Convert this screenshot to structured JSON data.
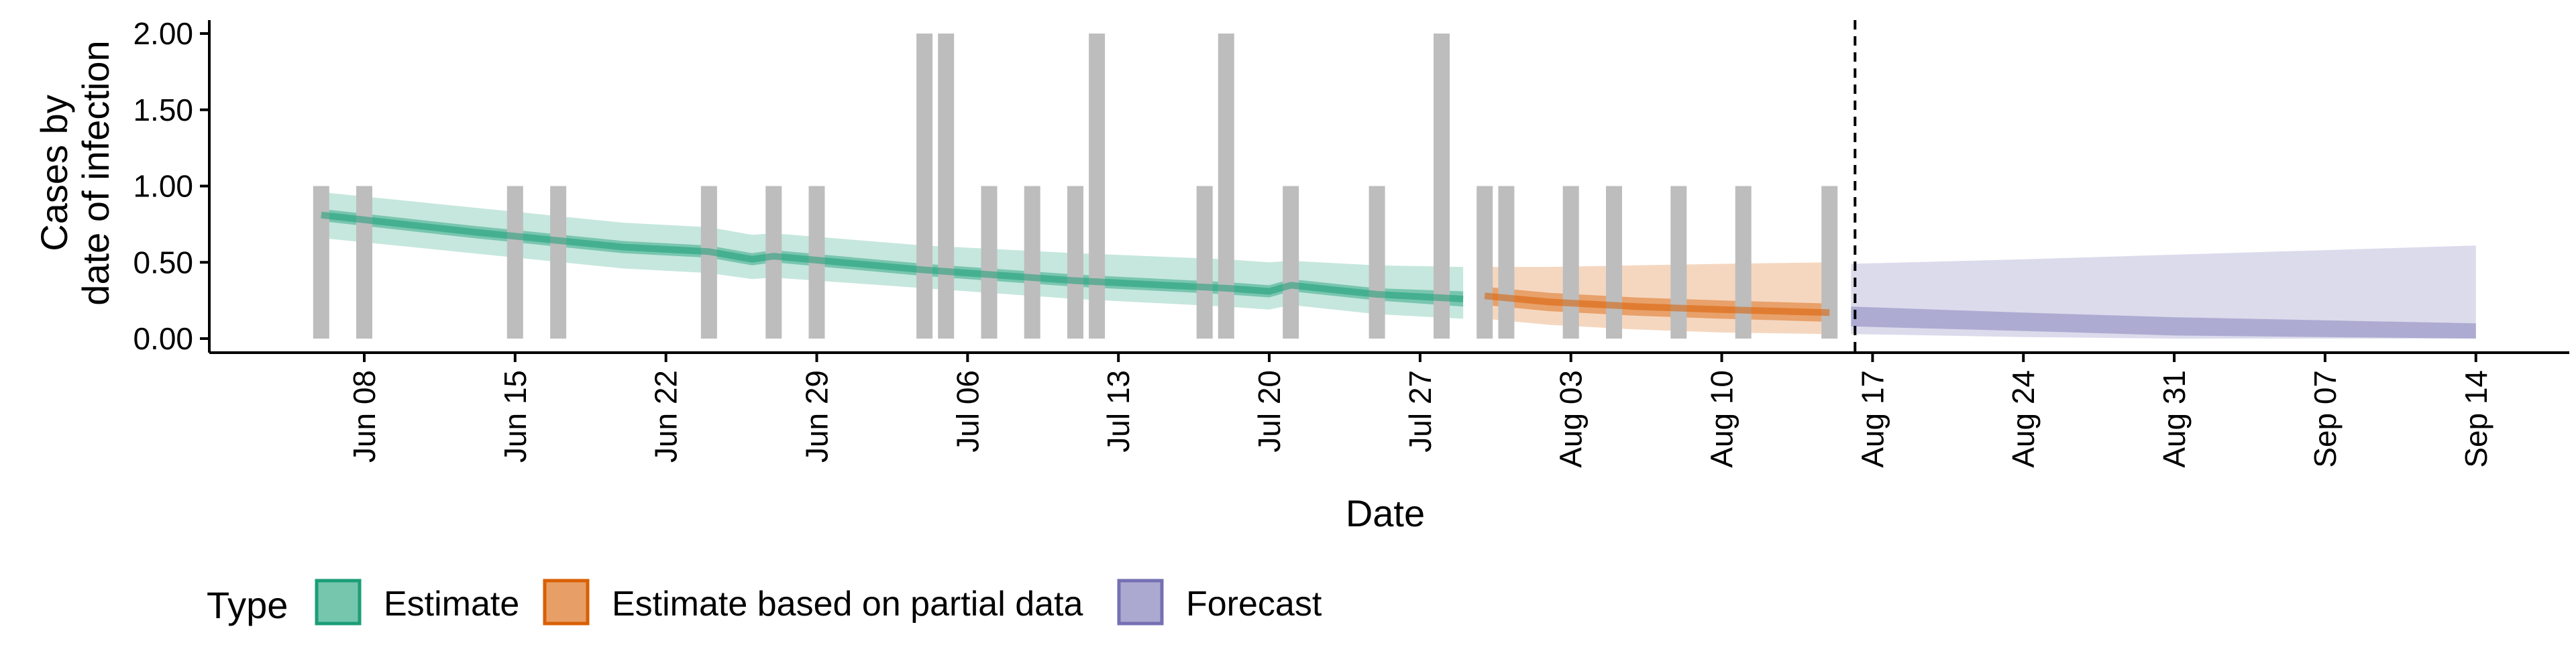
{
  "chart_data": {
    "type": "area",
    "xlabel": "Date",
    "ylabel_lines": [
      "Cases by",
      "date of infection"
    ],
    "ylim": [
      0,
      2.1
    ],
    "yticks": [
      0,
      0.5,
      1.0,
      1.5,
      2.0
    ],
    "ytick_labels": [
      "0.00",
      "0.50",
      "1.00",
      "1.50",
      "2.00"
    ],
    "xlim": [
      "2020-05-30",
      "2020-09-19"
    ],
    "xtick_dates": [
      "2020-06-08",
      "2020-06-15",
      "2020-06-22",
      "2020-06-29",
      "2020-07-06",
      "2020-07-13",
      "2020-07-20",
      "2020-07-27",
      "2020-08-03",
      "2020-08-10",
      "2020-08-17",
      "2020-08-24",
      "2020-08-31",
      "2020-09-07",
      "2020-09-14"
    ],
    "xtick_labels": [
      "Jun 08",
      "Jun 15",
      "Jun 22",
      "Jun 29",
      "Jul 06",
      "Jul 13",
      "Jul 20",
      "Jul 27",
      "Aug 03",
      "Aug 10",
      "Aug 17",
      "Aug 24",
      "Aug 31",
      "Sep 07",
      "Sep 14"
    ],
    "forecast_date": "2020-08-16",
    "reported_cases": {
      "color": "#bdbdbd",
      "dates": [
        "2020-06-06",
        "2020-06-08",
        "2020-06-15",
        "2020-06-17",
        "2020-06-24",
        "2020-06-27",
        "2020-06-29",
        "2020-07-04",
        "2020-07-05",
        "2020-07-07",
        "2020-07-09",
        "2020-07-11",
        "2020-07-12",
        "2020-07-17",
        "2020-07-18",
        "2020-07-21",
        "2020-07-25",
        "2020-07-28",
        "2020-07-30",
        "2020-07-31",
        "2020-08-03",
        "2020-08-05",
        "2020-08-08",
        "2020-08-11",
        "2020-08-15"
      ],
      "values": [
        1,
        1,
        1,
        1,
        1,
        1,
        1,
        2,
        2,
        1,
        1,
        1,
        2,
        1,
        2,
        1,
        1,
        2,
        1,
        1,
        1,
        1,
        1,
        1,
        1
      ]
    },
    "series": [
      {
        "name": "Estimate",
        "color": "#1b9e77",
        "dates": [
          "2020-06-06",
          "2020-06-13",
          "2020-06-20",
          "2020-06-24",
          "2020-06-26",
          "2020-06-27",
          "2020-07-04",
          "2020-07-11",
          "2020-07-18",
          "2020-07-20",
          "2020-07-21",
          "2020-07-25",
          "2020-07-29"
        ],
        "median": [
          0.81,
          0.7,
          0.6,
          0.57,
          0.52,
          0.54,
          0.45,
          0.38,
          0.33,
          0.31,
          0.35,
          0.29,
          0.26
        ],
        "lower_50": [
          0.77,
          0.66,
          0.56,
          0.53,
          0.48,
          0.5,
          0.41,
          0.34,
          0.29,
          0.27,
          0.31,
          0.25,
          0.21
        ],
        "upper_50": [
          0.85,
          0.74,
          0.64,
          0.61,
          0.56,
          0.58,
          0.49,
          0.42,
          0.37,
          0.35,
          0.39,
          0.33,
          0.31
        ],
        "lower_90": [
          0.66,
          0.56,
          0.46,
          0.43,
          0.39,
          0.4,
          0.33,
          0.26,
          0.21,
          0.19,
          0.22,
          0.16,
          0.13
        ],
        "upper_90": [
          0.96,
          0.86,
          0.76,
          0.73,
          0.68,
          0.69,
          0.61,
          0.56,
          0.52,
          0.5,
          0.51,
          0.48,
          0.47
        ]
      },
      {
        "name": "Estimate based on partial data",
        "color": "#d95f02",
        "dates": [
          "2020-07-30",
          "2020-08-02",
          "2020-08-06",
          "2020-08-10",
          "2020-08-15"
        ],
        "median": [
          0.28,
          0.24,
          0.21,
          0.19,
          0.17
        ],
        "lower_50": [
          0.22,
          0.18,
          0.15,
          0.13,
          0.11
        ],
        "upper_50": [
          0.34,
          0.3,
          0.27,
          0.25,
          0.23
        ],
        "lower_90": [
          0.13,
          0.09,
          0.06,
          0.04,
          0.03
        ],
        "upper_90": [
          0.47,
          0.47,
          0.48,
          0.49,
          0.5
        ]
      },
      {
        "name": "Forecast",
        "color": "#7570b3",
        "dates": [
          "2020-08-16",
          "2020-08-24",
          "2020-08-31",
          "2020-09-07",
          "2020-09-14"
        ],
        "lower_50": [
          0.08,
          0.05,
          0.02,
          0.01,
          0.0
        ],
        "upper_50": [
          0.21,
          0.17,
          0.14,
          0.12,
          0.1
        ],
        "lower_90": [
          0.03,
          0.01,
          0.0,
          0.0,
          0.0
        ],
        "upper_90": [
          0.49,
          0.52,
          0.55,
          0.58,
          0.61
        ]
      }
    ],
    "legend": {
      "title": "Type",
      "position": "bottom",
      "items": [
        "Estimate",
        "Estimate based on partial data",
        "Forecast"
      ]
    }
  }
}
